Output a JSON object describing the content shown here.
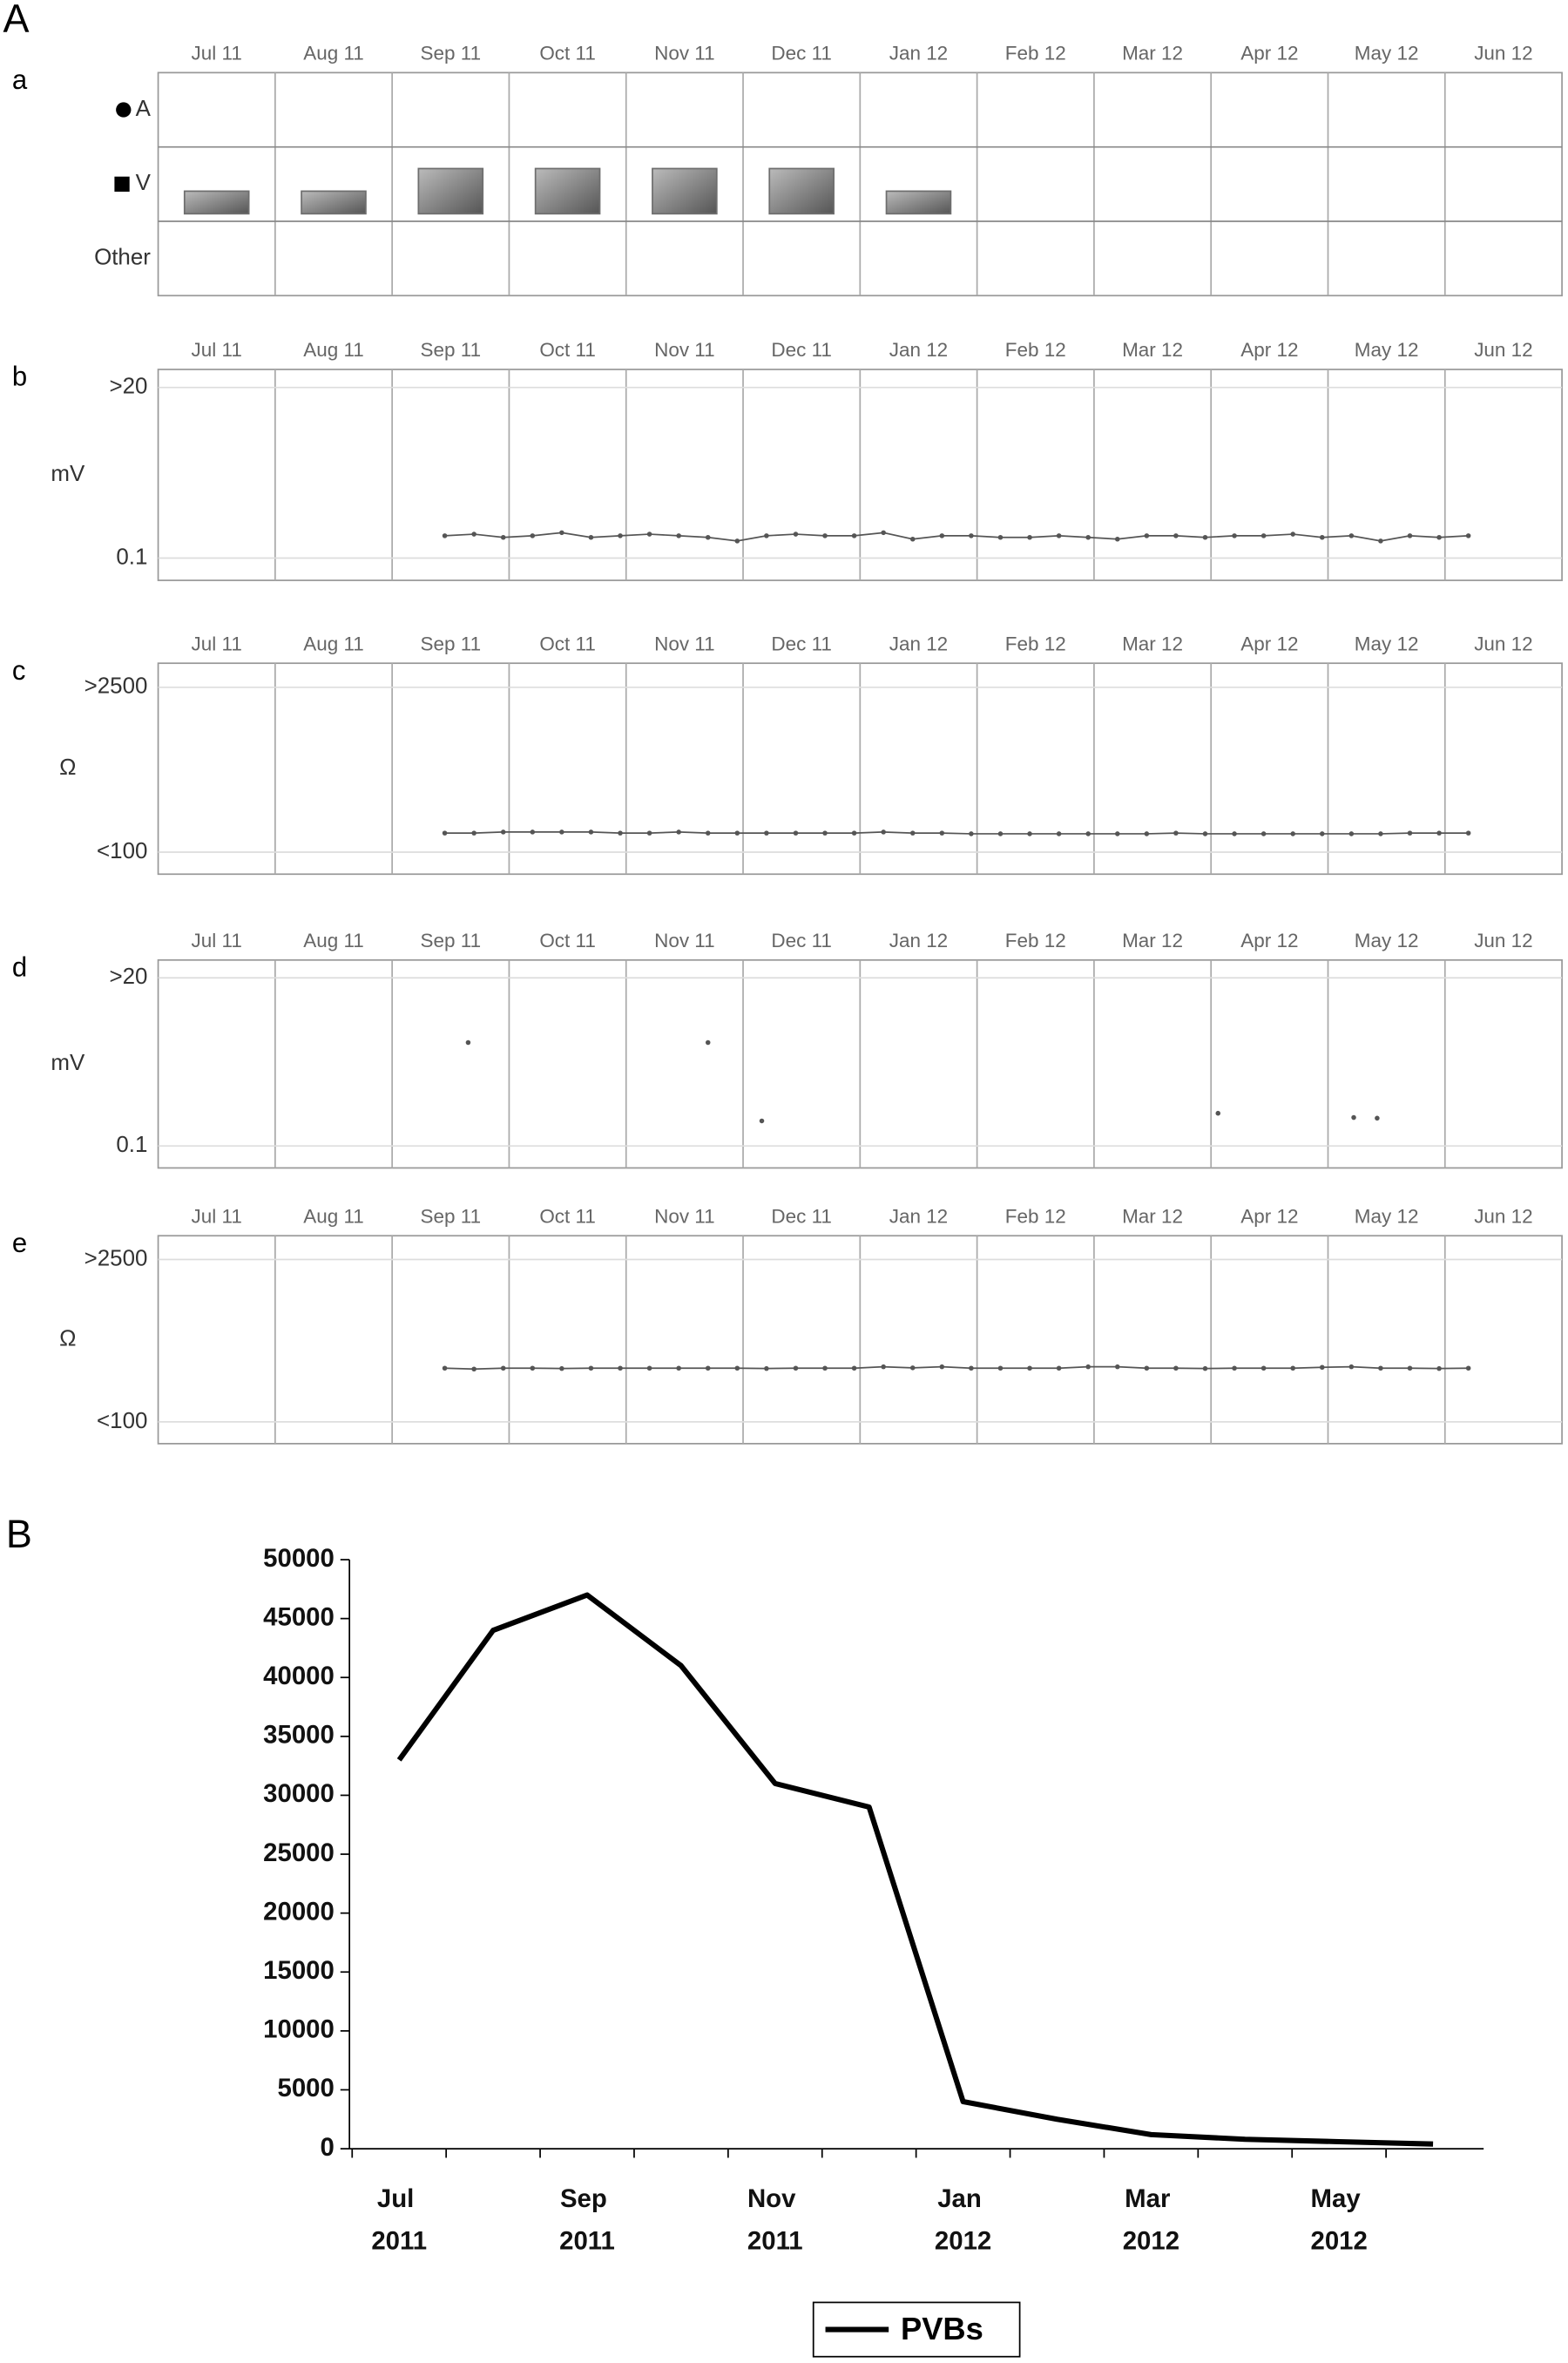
{
  "figure": "A",
  "chart_data": [
    {
      "type": "swimlane",
      "panel": "a",
      "categories": [
        "Jul 11",
        "Aug 11",
        "Sep 11",
        "Oct 11",
        "Nov 11",
        "Dec 11",
        "Jan 12",
        "Feb 12",
        "Mar 12",
        "Apr 12",
        "May 12",
        "Jun 12"
      ],
      "series": [
        {
          "name": "A",
          "values": [
            null,
            null,
            null,
            null,
            null,
            null,
            null,
            null,
            null,
            null,
            null,
            null
          ]
        },
        {
          "name": "V",
          "color": "#6e6e6e",
          "values": [
            1,
            1,
            2,
            2,
            2,
            2,
            1,
            null,
            null,
            null,
            null,
            null
          ]
        },
        {
          "name": "Other",
          "values": [
            null,
            null,
            null,
            null,
            null,
            null,
            null,
            null,
            null,
            null,
            null,
            null
          ]
        }
      ]
    },
    {
      "type": "line",
      "panel": "b",
      "ylabel": "mV",
      "log": true,
      "xlim": [
        0,
        12
      ],
      "ylim": [
        0.05,
        35
      ],
      "xticks": [
        {
          "value": 0.5,
          "label": "Jul 11"
        },
        {
          "value": 1.5,
          "label": "Aug 11"
        },
        {
          "value": 2.5,
          "label": "Sep 11"
        },
        {
          "value": 3.5,
          "label": "Oct 11"
        },
        {
          "value": 4.5,
          "label": "Nov 11"
        },
        {
          "value": 5.5,
          "label": "Dec 11"
        },
        {
          "value": 6.5,
          "label": "Jan 12"
        },
        {
          "value": 7.5,
          "label": "Feb 12"
        },
        {
          "value": 8.5,
          "label": "Mar 12"
        },
        {
          "value": 9.5,
          "label": "Apr 12"
        },
        {
          "value": 10.5,
          "label": "May 12"
        },
        {
          "value": 11.5,
          "label": "Jun 12"
        }
      ],
      "yticks": [
        {
          "value": 20,
          "label": ">20"
        },
        {
          "value": 0.1,
          "label": "0.1"
        }
      ],
      "x": [
        2.45,
        2.7,
        2.95,
        3.2,
        3.45,
        3.7,
        3.95,
        4.2,
        4.45,
        4.7,
        4.95,
        5.2,
        5.45,
        5.7,
        5.95,
        6.2,
        6.45,
        6.7,
        6.95,
        7.2,
        7.45,
        7.7,
        7.95,
        8.2,
        8.45,
        8.7,
        8.95,
        9.2,
        9.45,
        9.7,
        9.95,
        10.2,
        10.45,
        10.7,
        10.95,
        11.2
      ],
      "series": [
        {
          "color": "#555555",
          "values": [
            0.2,
            0.21,
            0.19,
            0.2,
            0.22,
            0.19,
            0.2,
            0.21,
            0.2,
            0.19,
            0.17,
            0.2,
            0.21,
            0.2,
            0.2,
            0.22,
            0.18,
            0.2,
            0.2,
            0.19,
            0.19,
            0.2,
            0.19,
            0.18,
            0.2,
            0.2,
            0.19,
            0.2,
            0.2,
            0.21,
            0.19,
            0.2,
            0.17,
            0.2,
            0.19,
            0.2
          ]
        }
      ]
    },
    {
      "type": "line",
      "panel": "c",
      "ylabel": "Ω",
      "log": true,
      "xlim": [
        0,
        12
      ],
      "ylim": [
        65,
        4000
      ],
      "xticks": [
        {
          "value": 0.5,
          "label": "Jul 11"
        },
        {
          "value": 1.5,
          "label": "Aug 11"
        },
        {
          "value": 2.5,
          "label": "Sep 11"
        },
        {
          "value": 3.5,
          "label": "Oct 11"
        },
        {
          "value": 4.5,
          "label": "Nov 11"
        },
        {
          "value": 5.5,
          "label": "Dec 11"
        },
        {
          "value": 6.5,
          "label": "Jan 12"
        },
        {
          "value": 7.5,
          "label": "Feb 12"
        },
        {
          "value": 8.5,
          "label": "Mar 12"
        },
        {
          "value": 9.5,
          "label": "Apr 12"
        },
        {
          "value": 10.5,
          "label": "May 12"
        },
        {
          "value": 11.5,
          "label": "Jun 12"
        }
      ],
      "yticks": [
        {
          "value": 2500,
          "label": ">2500"
        },
        {
          "value": 100,
          "label": "<100"
        }
      ],
      "x": [
        2.45,
        2.7,
        2.95,
        3.2,
        3.45,
        3.7,
        3.95,
        4.2,
        4.45,
        4.7,
        4.95,
        5.2,
        5.45,
        5.7,
        5.95,
        6.2,
        6.45,
        6.7,
        6.95,
        7.2,
        7.45,
        7.7,
        7.95,
        8.2,
        8.45,
        8.7,
        8.95,
        9.2,
        9.45,
        9.7,
        9.95,
        10.2,
        10.45,
        10.7,
        10.95,
        11.2
      ],
      "series": [
        {
          "color": "#555555",
          "values": [
            145,
            145,
            148,
            148,
            148,
            148,
            145,
            145,
            148,
            145,
            145,
            145,
            145,
            145,
            145,
            148,
            145,
            145,
            143,
            143,
            143,
            143,
            143,
            143,
            143,
            145,
            143,
            143,
            143,
            143,
            143,
            143,
            143,
            145,
            145,
            145
          ]
        }
      ]
    },
    {
      "type": "scatter",
      "panel": "d",
      "ylabel": "mV",
      "log": true,
      "xlim": [
        0,
        12
      ],
      "ylim": [
        0.05,
        35
      ],
      "xticks": [
        {
          "value": 0.5,
          "label": "Jul 11"
        },
        {
          "value": 1.5,
          "label": "Aug 11"
        },
        {
          "value": 2.5,
          "label": "Sep 11"
        },
        {
          "value": 3.5,
          "label": "Oct 11"
        },
        {
          "value": 4.5,
          "label": "Nov 11"
        },
        {
          "value": 5.5,
          "label": "Dec 11"
        },
        {
          "value": 6.5,
          "label": "Jan 12"
        },
        {
          "value": 7.5,
          "label": "Feb 12"
        },
        {
          "value": 8.5,
          "label": "Mar 12"
        },
        {
          "value": 9.5,
          "label": "Apr 12"
        },
        {
          "value": 10.5,
          "label": "May 12"
        },
        {
          "value": 11.5,
          "label": "Jun 12"
        }
      ],
      "yticks": [
        {
          "value": 20,
          "label": ">20"
        },
        {
          "value": 0.1,
          "label": "0.1"
        }
      ],
      "x": [
        2.65,
        4.7,
        5.16,
        9.06,
        10.22,
        10.42
      ],
      "series": [
        {
          "color": "#555555",
          "values": [
            2.6,
            2.6,
            0.22,
            0.28,
            0.245,
            0.24
          ]
        }
      ]
    },
    {
      "type": "line",
      "panel": "e",
      "ylabel": "Ω",
      "log": true,
      "xlim": [
        0,
        12
      ],
      "ylim": [
        65,
        4000
      ],
      "xticks": [
        {
          "value": 0.5,
          "label": "Jul 11"
        },
        {
          "value": 1.5,
          "label": "Aug 11"
        },
        {
          "value": 2.5,
          "label": "Sep 11"
        },
        {
          "value": 3.5,
          "label": "Oct 11"
        },
        {
          "value": 4.5,
          "label": "Nov 11"
        },
        {
          "value": 5.5,
          "label": "Dec 11"
        },
        {
          "value": 6.5,
          "label": "Jan 12"
        },
        {
          "value": 7.5,
          "label": "Feb 12"
        },
        {
          "value": 8.5,
          "label": "Mar 12"
        },
        {
          "value": 9.5,
          "label": "Apr 12"
        },
        {
          "value": 10.5,
          "label": "May 12"
        },
        {
          "value": 11.5,
          "label": "Jun 12"
        }
      ],
      "yticks": [
        {
          "value": 2500,
          "label": ">2500"
        },
        {
          "value": 100,
          "label": "<100"
        }
      ],
      "x": [
        2.45,
        2.7,
        2.95,
        3.2,
        3.45,
        3.7,
        3.95,
        4.2,
        4.45,
        4.7,
        4.95,
        5.2,
        5.45,
        5.7,
        5.95,
        6.2,
        6.45,
        6.7,
        6.95,
        7.2,
        7.45,
        7.7,
        7.95,
        8.2,
        8.45,
        8.7,
        8.95,
        9.2,
        9.45,
        9.7,
        9.95,
        10.2,
        10.45,
        10.7,
        10.95,
        11.2
      ],
      "series": [
        {
          "color": "#555555",
          "values": [
            290,
            285,
            290,
            290,
            288,
            290,
            290,
            290,
            290,
            290,
            290,
            288,
            290,
            290,
            290,
            298,
            292,
            298,
            290,
            290,
            290,
            290,
            298,
            298,
            290,
            290,
            288,
            290,
            290,
            290,
            295,
            298,
            290,
            290,
            288,
            290
          ]
        }
      ]
    },
    {
      "type": "line",
      "panel": "B",
      "categories": [
        "Jul 2011",
        null,
        "Sep 2011",
        null,
        "Nov 2011",
        null,
        "Jan 2012",
        null,
        "Mar 2012",
        null,
        "May 2012",
        null
      ],
      "series": [
        {
          "name": "PVBs",
          "color": "#000000",
          "values": [
            33000,
            44000,
            47000,
            41000,
            31000,
            29000,
            4000,
            2500,
            1200,
            800,
            600,
            400
          ]
        }
      ],
      "ylim": [
        0,
        50000
      ],
      "yticks": [
        0,
        5000,
        10000,
        15000,
        20000,
        25000,
        30000,
        35000,
        40000,
        45000,
        50000
      ],
      "legend": "bottom"
    }
  ]
}
